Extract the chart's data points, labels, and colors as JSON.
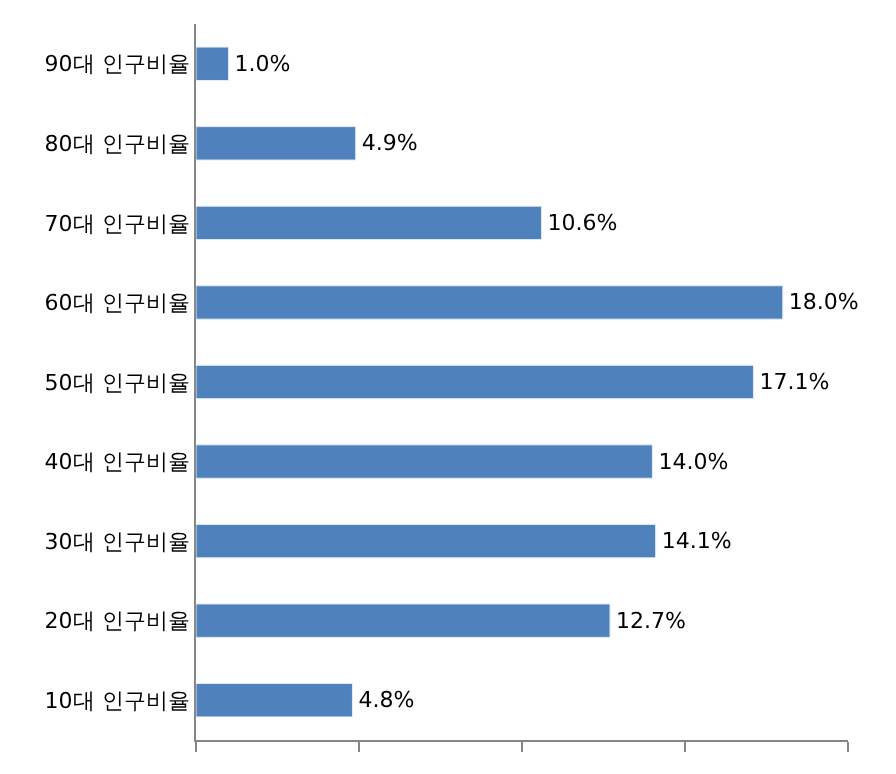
{
  "chart_data": {
    "type": "bar",
    "orientation": "horizontal",
    "categories": [
      "90대 인구비율",
      "80대 인구비율",
      "70대 인구비율",
      "60대 인구비율",
      "50대 인구비율",
      "40대 인구비율",
      "30대 인구비율",
      "20대 인구비율",
      "10대 인구비율"
    ],
    "values": [
      1.0,
      4.9,
      10.6,
      18.0,
      17.1,
      14.0,
      14.1,
      12.7,
      4.8
    ],
    "value_labels": [
      "1.0%",
      "4.9%",
      "10.6%",
      "18.0%",
      "17.1%",
      "14.0%",
      "14.1%",
      "12.7%",
      "4.8%"
    ],
    "color": "#4f81bd",
    "xlim": [
      0,
      20
    ],
    "xticks": [
      {
        "value": 0,
        "label": null
      },
      {
        "value": 5,
        "label": null
      },
      {
        "value": 10,
        "label": null
      },
      {
        "value": 15,
        "label": null
      },
      {
        "value": 20,
        "label": null
      }
    ],
    "tick_labels": "y"
  }
}
